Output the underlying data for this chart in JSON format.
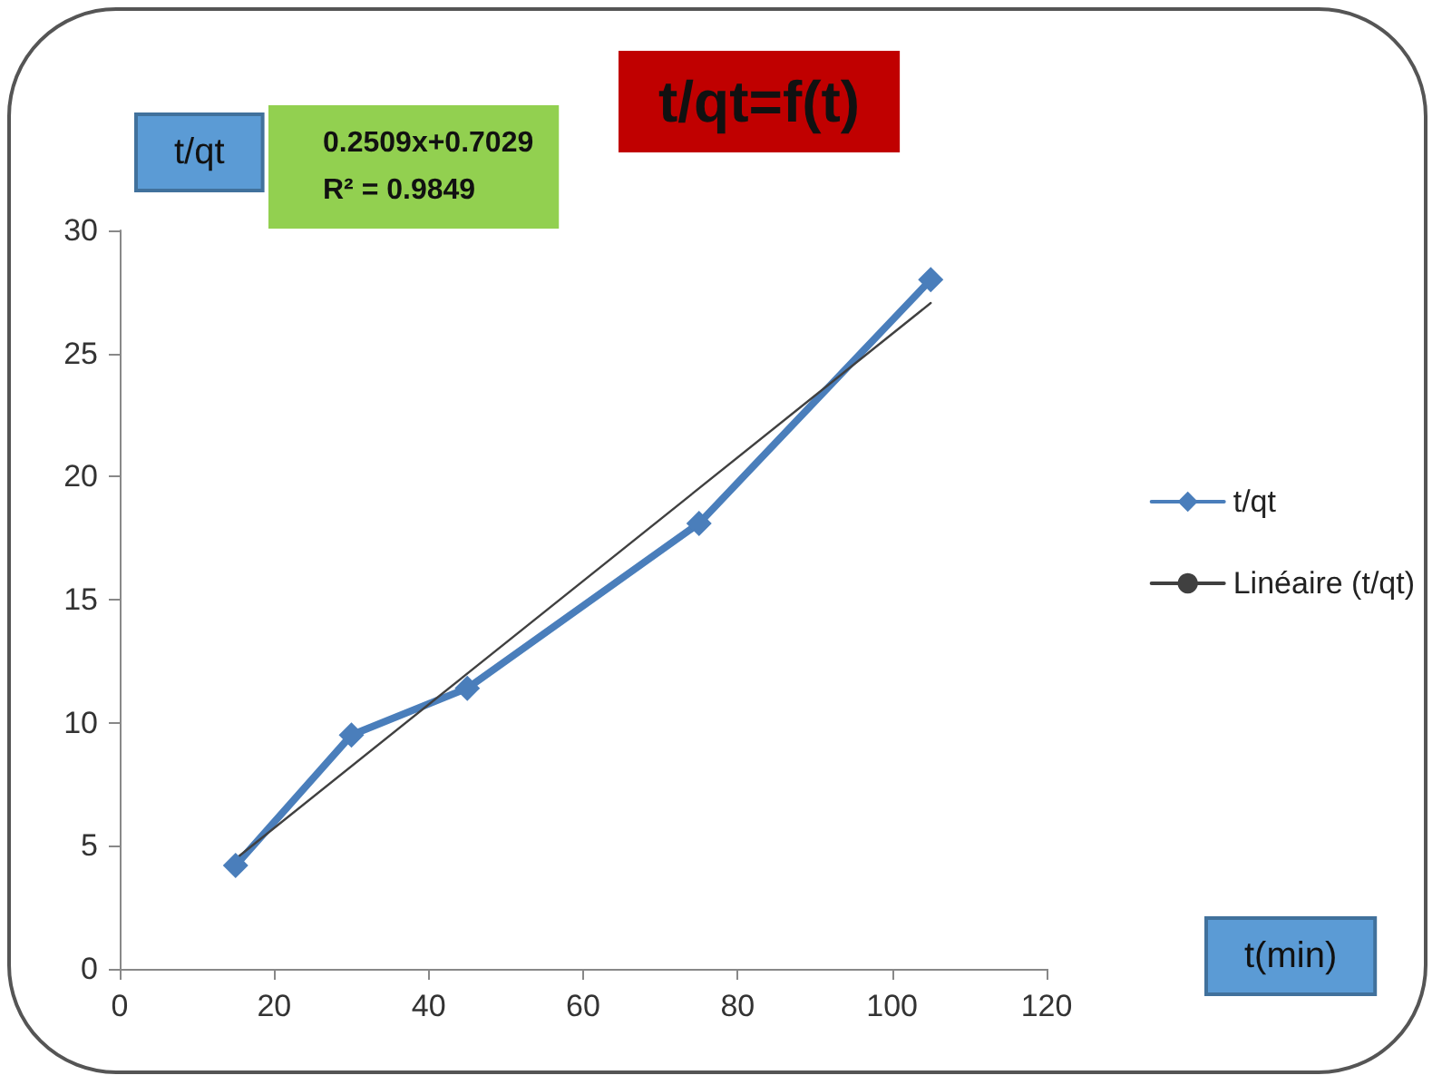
{
  "chart_data": {
    "type": "line",
    "title": "t/qt=f(t)",
    "xlabel": "t(min)",
    "ylabel": "t/qt",
    "annotations": [
      "0.2509x+0.7029",
      "R² = 0.9849"
    ],
    "series": [
      {
        "name": "t/qt",
        "color": "#4a7ebb",
        "x": [
          15,
          30,
          45,
          75,
          105
        ],
        "values": [
          4.2,
          9.5,
          11.4,
          18.1,
          28
        ],
        "marker": "diamond"
      },
      {
        "name": "Linéaire (t/qt)",
        "color": "#404040",
        "x": [
          15,
          105
        ],
        "values": [
          4.47,
          27.05
        ],
        "marker": "none"
      }
    ],
    "xlim": [
      0,
      120
    ],
    "xticks": [
      0,
      20,
      40,
      60,
      80,
      100,
      120
    ],
    "ylim": [
      0,
      30
    ],
    "yticks": [
      0,
      5,
      10,
      15,
      20,
      25,
      30
    ],
    "grid": false,
    "legend": "right",
    "line_style": "solid"
  }
}
